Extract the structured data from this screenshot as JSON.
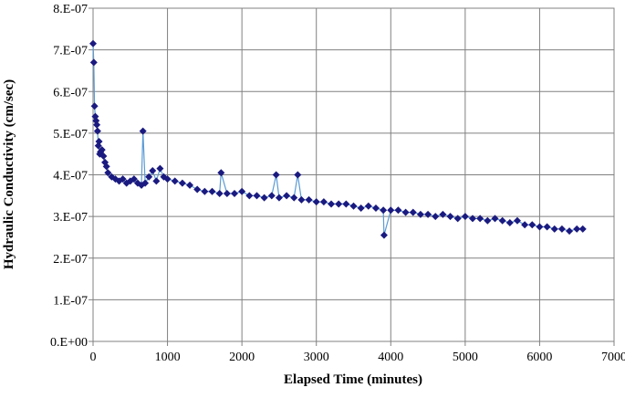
{
  "chart_data": {
    "type": "scatter",
    "title": "",
    "xlabel": "Elapsed Time (minutes)",
    "ylabel": "Hydraulic Conductivity (cm/sec)",
    "xlim": [
      0,
      7000
    ],
    "ylim": [
      0,
      8e-07
    ],
    "x_ticks": [
      0,
      1000,
      2000,
      3000,
      4000,
      5000,
      6000,
      7000
    ],
    "x_tick_labels": [
      "0",
      "1000",
      "2000",
      "3000",
      "4000",
      "5000",
      "6000",
      "7000"
    ],
    "y_ticks": [
      0,
      1e-07,
      2e-07,
      3e-07,
      4e-07,
      5e-07,
      6e-07,
      7e-07,
      8e-07
    ],
    "y_tick_labels": [
      "0.E+00",
      "1.E-07",
      "2.E-07",
      "3.E-07",
      "4.E-07",
      "5.E-07",
      "6.E-07",
      "7.E-07",
      "8.E-07"
    ],
    "grid": true,
    "legend": "none",
    "marker": "diamond",
    "marker_color": "#1a1a80",
    "line_color": "#5b9bd5",
    "series": [
      {
        "x": [
          0,
          10,
          20,
          30,
          40,
          50,
          60,
          70,
          80,
          90,
          100,
          120,
          140,
          160,
          180,
          200,
          250,
          300,
          350,
          400,
          450,
          500,
          550,
          600,
          650,
          670,
          700,
          750,
          800,
          850,
          900,
          950,
          1000,
          1100,
          1200,
          1300,
          1400,
          1500,
          1600,
          1700,
          1720,
          1800,
          1900,
          2000,
          2100,
          2200,
          2300,
          2400,
          2460,
          2500,
          2600,
          2700,
          2750,
          2800,
          2900,
          3000,
          3100,
          3200,
          3300,
          3400,
          3500,
          3600,
          3700,
          3800,
          3900,
          3910,
          4000,
          4100,
          4200,
          4300,
          4400,
          4500,
          4600,
          4700,
          4800,
          4900,
          5000,
          5100,
          5200,
          5300,
          5400,
          5500,
          5600,
          5700,
          5800,
          5900,
          6000,
          6100,
          6200,
          6300,
          6400,
          6500,
          6580
        ],
        "y": [
          7.15e-07,
          6.7e-07,
          5.65e-07,
          5.4e-07,
          5.3e-07,
          5.2e-07,
          5.05e-07,
          4.7e-07,
          4.8e-07,
          4.5e-07,
          4.55e-07,
          4.6e-07,
          4.45e-07,
          4.3e-07,
          4.2e-07,
          4.05e-07,
          3.95e-07,
          3.9e-07,
          3.85e-07,
          3.9e-07,
          3.8e-07,
          3.85e-07,
          3.9e-07,
          3.8e-07,
          3.75e-07,
          5.05e-07,
          3.8e-07,
          3.95e-07,
          4.1e-07,
          3.85e-07,
          4.15e-07,
          3.95e-07,
          3.9e-07,
          3.85e-07,
          3.8e-07,
          3.75e-07,
          3.65e-07,
          3.6e-07,
          3.6e-07,
          3.55e-07,
          4.05e-07,
          3.55e-07,
          3.55e-07,
          3.6e-07,
          3.5e-07,
          3.5e-07,
          3.45e-07,
          3.5e-07,
          4e-07,
          3.45e-07,
          3.5e-07,
          3.45e-07,
          4e-07,
          3.4e-07,
          3.4e-07,
          3.35e-07,
          3.35e-07,
          3.3e-07,
          3.3e-07,
          3.3e-07,
          3.25e-07,
          3.2e-07,
          3.25e-07,
          3.2e-07,
          3.15e-07,
          2.55e-07,
          3.15e-07,
          3.15e-07,
          3.1e-07,
          3.1e-07,
          3.05e-07,
          3.05e-07,
          3e-07,
          3.05e-07,
          3e-07,
          2.95e-07,
          3e-07,
          2.95e-07,
          2.95e-07,
          2.9e-07,
          2.95e-07,
          2.9e-07,
          2.85e-07,
          2.9e-07,
          2.8e-07,
          2.8e-07,
          2.75e-07,
          2.75e-07,
          2.7e-07,
          2.7e-07,
          2.65e-07,
          2.7e-07,
          2.7e-07
        ]
      }
    ]
  }
}
